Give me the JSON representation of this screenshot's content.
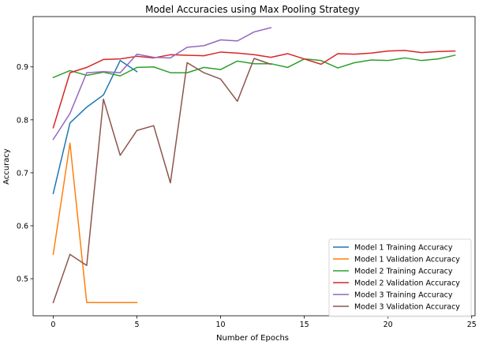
{
  "chart_data": {
    "type": "line",
    "title": "Model Accuracies using Max Pooling Strategy",
    "xlabel": "Number of Epochs",
    "ylabel": "Accuracy",
    "xlim": [
      -1.2,
      25.2
    ],
    "ylim": [
      0.43,
      0.995
    ],
    "xticks": [
      0,
      5,
      10,
      15,
      20,
      25
    ],
    "yticks": [
      0.5,
      0.6,
      0.7,
      0.8,
      0.9
    ],
    "xtick_labels": [
      "0",
      "5",
      "10",
      "15",
      "20",
      "25"
    ],
    "ytick_labels": [
      "0.5",
      "0.6",
      "0.7",
      "0.8",
      "0.9"
    ],
    "grid": false,
    "legend_position": "bottom-right",
    "series": [
      {
        "name": "Model 1 Training Accuracy",
        "color": "#1f77b4",
        "x": [
          0,
          1,
          2,
          3,
          4,
          5
        ],
        "y": [
          0.661,
          0.794,
          0.824,
          0.847,
          0.912,
          0.891
        ]
      },
      {
        "name": "Model 1 Validation Accuracy",
        "color": "#ff7f0e",
        "x": [
          0,
          1,
          2,
          3,
          4,
          5
        ],
        "y": [
          0.546,
          0.756,
          0.455,
          0.455,
          0.455,
          0.455
        ]
      },
      {
        "name": "Model 2 Training Accuracy",
        "color": "#2ca02c",
        "x": [
          0,
          1,
          2,
          3,
          4,
          5,
          6,
          7,
          8,
          9,
          10,
          11,
          12,
          13,
          14,
          15,
          16,
          17,
          18,
          19,
          20,
          21,
          22,
          23,
          24
        ],
        "y": [
          0.88,
          0.893,
          0.884,
          0.89,
          0.883,
          0.899,
          0.9,
          0.889,
          0.889,
          0.899,
          0.895,
          0.911,
          0.906,
          0.906,
          0.899,
          0.915,
          0.912,
          0.898,
          0.908,
          0.913,
          0.912,
          0.917,
          0.912,
          0.915,
          0.922
        ]
      },
      {
        "name": "Model 2 Validation Accuracy",
        "color": "#d62728",
        "x": [
          0,
          1,
          2,
          3,
          4,
          5,
          6,
          7,
          8,
          9,
          10,
          11,
          12,
          13,
          14,
          15,
          16,
          17,
          18,
          19,
          20,
          21,
          22,
          23,
          24
        ],
        "y": [
          0.785,
          0.889,
          0.899,
          0.914,
          0.915,
          0.92,
          0.917,
          0.923,
          0.922,
          0.921,
          0.928,
          0.926,
          0.923,
          0.918,
          0.925,
          0.915,
          0.905,
          0.925,
          0.924,
          0.926,
          0.93,
          0.931,
          0.927,
          0.929,
          0.93
        ]
      },
      {
        "name": "Model 3 Training Accuracy",
        "color": "#9467bd",
        "x": [
          0,
          1,
          2,
          3,
          4,
          5,
          6,
          7,
          8,
          9,
          10,
          11,
          12,
          13
        ],
        "y": [
          0.763,
          0.812,
          0.889,
          0.891,
          0.889,
          0.924,
          0.918,
          0.917,
          0.937,
          0.94,
          0.951,
          0.949,
          0.966,
          0.974
        ]
      },
      {
        "name": "Model 3 Validation Accuracy",
        "color": "#8c564b",
        "x": [
          0,
          1,
          2,
          3,
          4,
          5,
          6,
          7,
          8,
          9,
          10,
          11,
          12,
          13
        ],
        "y": [
          0.455,
          0.546,
          0.525,
          0.839,
          0.733,
          0.78,
          0.789,
          0.681,
          0.908,
          0.889,
          0.877,
          0.835,
          0.916,
          0.905
        ]
      }
    ]
  }
}
